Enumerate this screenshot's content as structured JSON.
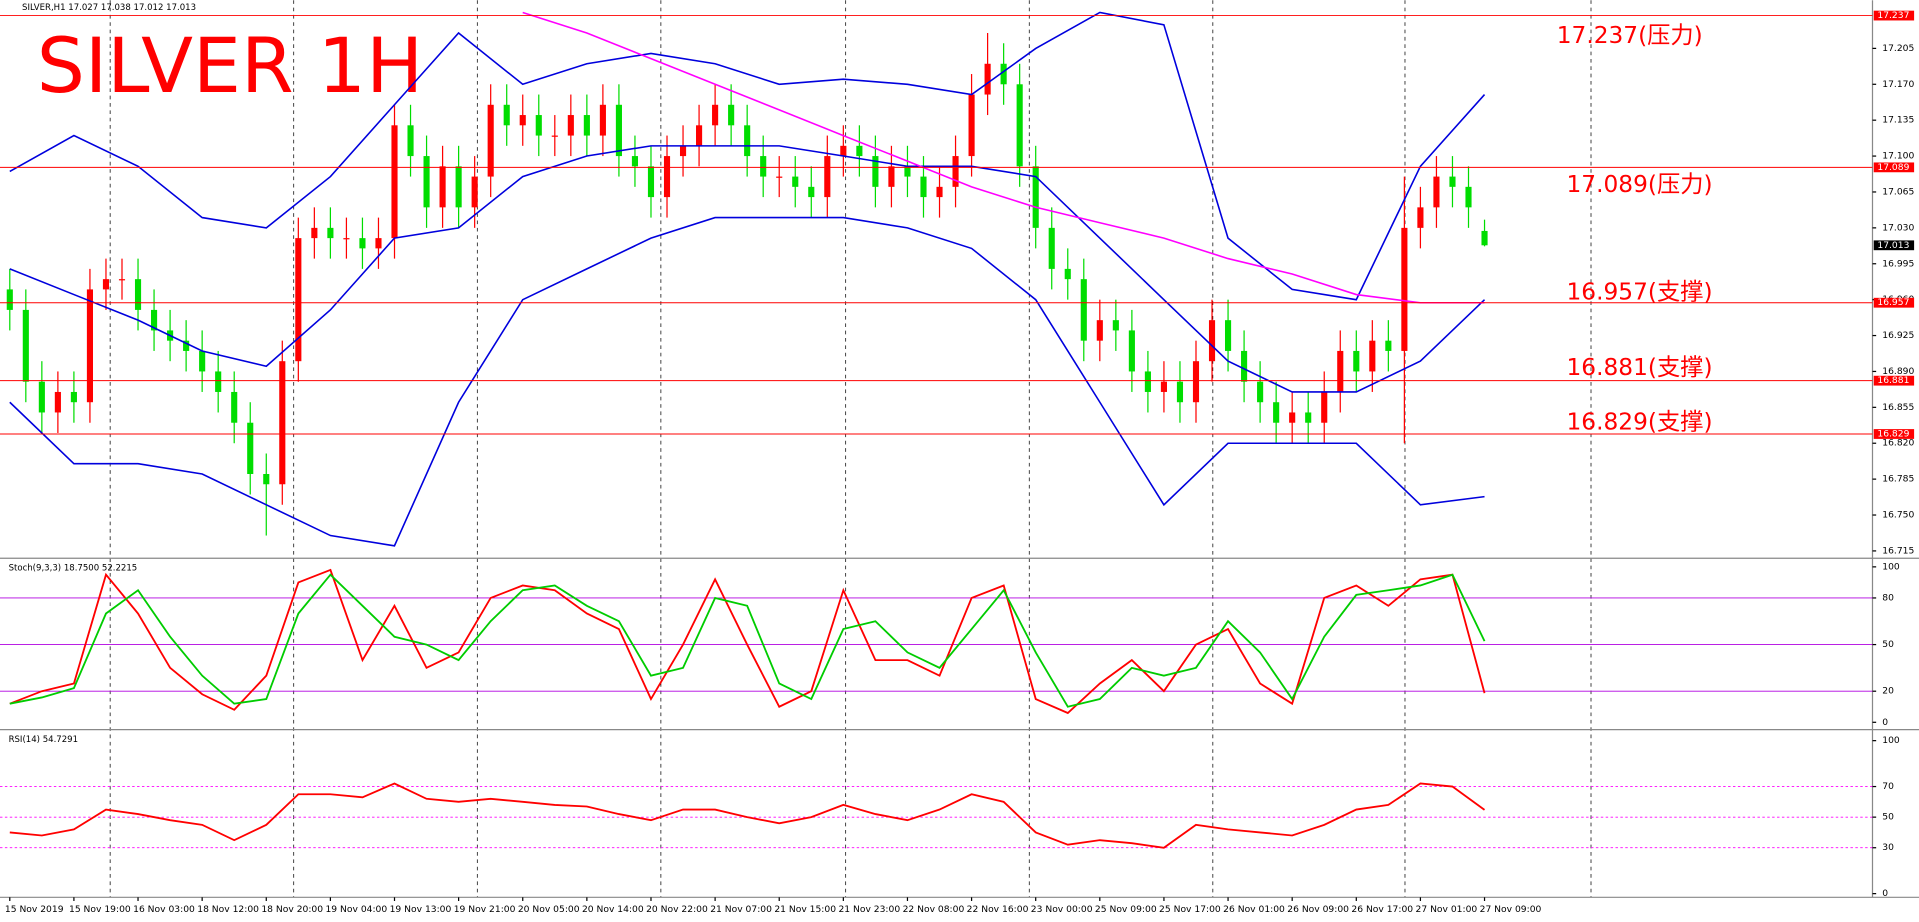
{
  "header": "SILVER,H1  17.027 17.038 17.012 17.013",
  "time_axis": [
    "15 Nov 2019",
    "15 Nov 19:00",
    "16 Nov 03:00",
    "18 Nov 12:00",
    "18 Nov 20:00",
    "19 Nov 04:00",
    "19 Nov 13:00",
    "19 Nov 21:00",
    "20 Nov 05:00",
    "20 Nov 14:00",
    "20 Nov 22:00",
    "21 Nov 07:00",
    "21 Nov 15:00",
    "21 Nov 23:00",
    "22 Nov 08:00",
    "22 Nov 16:00",
    "23 Nov 00:00",
    "25 Nov 09:00",
    "25 Nov 17:00",
    "26 Nov 01:00",
    "26 Nov 09:00",
    "26 Nov 17:00",
    "27 Nov 01:00",
    "27 Nov 09:00"
  ],
  "chart_data": [
    {
      "type": "candlestick",
      "title": "SILVER   1H",
      "open": [
        16.97,
        16.95,
        16.88,
        16.85,
        16.87,
        16.86,
        16.97,
        16.98,
        16.98,
        16.95,
        16.93,
        16.92,
        16.91,
        16.89,
        16.87,
        16.84,
        16.79,
        16.78,
        16.9,
        17.02,
        17.03,
        17.02,
        17.02,
        17.01,
        17.02,
        17.13,
        17.1,
        17.05,
        17.09,
        17.05,
        17.08,
        17.15,
        17.13,
        17.14,
        17.12,
        17.12,
        17.14,
        17.12,
        17.15,
        17.1,
        17.09,
        17.06,
        17.1,
        17.11,
        17.13,
        17.15,
        17.13,
        17.1,
        17.08,
        17.08,
        17.07,
        17.06,
        17.1,
        17.11,
        17.1,
        17.07,
        17.09,
        17.08,
        17.06,
        17.07,
        17.1,
        17.16,
        17.19,
        17.17,
        17.09,
        17.03,
        16.99,
        16.98,
        16.92,
        16.94,
        16.93,
        16.89,
        16.87,
        16.88,
        16.86,
        16.9,
        16.94,
        16.91,
        16.88,
        16.86,
        16.84,
        16.85,
        16.84,
        16.87,
        16.91,
        16.89,
        16.92,
        16.91,
        17.03,
        17.05,
        17.08,
        17.07,
        17.027
      ],
      "high": [
        16.99,
        16.97,
        16.9,
        16.89,
        16.89,
        16.99,
        17.0,
        17.0,
        17.0,
        16.97,
        16.95,
        16.94,
        16.93,
        16.91,
        16.89,
        16.86,
        16.81,
        16.92,
        17.04,
        17.05,
        17.05,
        17.04,
        17.04,
        17.04,
        17.15,
        17.15,
        17.12,
        17.11,
        17.11,
        17.1,
        17.17,
        17.17,
        17.16,
        17.16,
        17.14,
        17.16,
        17.16,
        17.17,
        17.17,
        17.12,
        17.11,
        17.12,
        17.13,
        17.15,
        17.17,
        17.17,
        17.15,
        17.12,
        17.1,
        17.1,
        17.09,
        17.12,
        17.13,
        17.13,
        17.12,
        17.11,
        17.11,
        17.1,
        17.09,
        17.12,
        17.18,
        17.22,
        17.21,
        17.19,
        17.11,
        17.05,
        17.01,
        17.0,
        16.96,
        16.96,
        16.95,
        16.91,
        16.9,
        16.9,
        16.92,
        16.96,
        16.96,
        16.93,
        16.9,
        16.88,
        16.87,
        16.87,
        16.89,
        16.93,
        16.93,
        16.94,
        16.94,
        17.08,
        17.07,
        17.1,
        17.1,
        17.09,
        17.038
      ],
      "low": [
        16.93,
        16.86,
        16.83,
        16.83,
        16.84,
        16.84,
        16.95,
        16.96,
        16.93,
        16.91,
        16.9,
        16.89,
        16.87,
        16.85,
        16.82,
        16.77,
        16.73,
        16.76,
        16.88,
        17.0,
        17.0,
        17.0,
        16.99,
        16.99,
        17.0,
        17.08,
        17.03,
        17.03,
        17.03,
        17.03,
        17.06,
        17.11,
        17.11,
        17.1,
        17.1,
        17.1,
        17.1,
        17.1,
        17.08,
        17.07,
        17.04,
        17.04,
        17.08,
        17.09,
        17.11,
        17.11,
        17.08,
        17.06,
        17.06,
        17.05,
        17.04,
        17.04,
        17.08,
        17.08,
        17.05,
        17.05,
        17.06,
        17.04,
        17.04,
        17.05,
        17.08,
        17.14,
        17.15,
        17.07,
        17.01,
        16.97,
        16.96,
        16.9,
        16.9,
        16.91,
        16.87,
        16.85,
        16.85,
        16.84,
        16.84,
        16.88,
        16.89,
        16.86,
        16.84,
        16.82,
        16.82,
        16.82,
        16.82,
        16.85,
        16.87,
        16.87,
        16.89,
        16.82,
        17.01,
        17.03,
        17.05,
        17.03,
        17.012
      ],
      "close": [
        16.95,
        16.88,
        16.85,
        16.87,
        16.86,
        16.97,
        16.98,
        16.98,
        16.95,
        16.93,
        16.92,
        16.91,
        16.89,
        16.87,
        16.84,
        16.79,
        16.78,
        16.9,
        17.02,
        17.03,
        17.02,
        17.02,
        17.01,
        17.02,
        17.13,
        17.1,
        17.05,
        17.09,
        17.05,
        17.08,
        17.15,
        17.13,
        17.14,
        17.12,
        17.12,
        17.14,
        17.12,
        17.15,
        17.1,
        17.09,
        17.06,
        17.1,
        17.11,
        17.13,
        17.15,
        17.13,
        17.1,
        17.08,
        17.08,
        17.07,
        17.06,
        17.1,
        17.11,
        17.1,
        17.07,
        17.09,
        17.08,
        17.06,
        17.07,
        17.1,
        17.16,
        17.19,
        17.17,
        17.09,
        17.03,
        16.99,
        16.98,
        16.92,
        16.94,
        16.93,
        16.89,
        16.87,
        16.88,
        16.86,
        16.9,
        16.94,
        16.91,
        16.88,
        16.86,
        16.84,
        16.85,
        16.84,
        16.87,
        16.91,
        16.89,
        16.92,
        16.91,
        17.03,
        17.05,
        17.08,
        17.07,
        17.05,
        17.013
      ],
      "up_color": "#ff0000",
      "down_color": "#00dd00",
      "series": [
        {
          "color": "#0000dd",
          "values": [
            17.085,
            17.12,
            17.09,
            17.04,
            17.03,
            17.08,
            17.15,
            17.22,
            17.17,
            17.19,
            17.2,
            17.19,
            17.17,
            17.175,
            17.17,
            17.16,
            17.205,
            17.24,
            17.228,
            17.02,
            16.97,
            16.96,
            17.09,
            17.16
          ]
        },
        {
          "color": "#0000dd",
          "values": [
            16.99,
            16.965,
            16.94,
            16.91,
            16.895,
            16.95,
            17.02,
            17.03,
            17.08,
            17.1,
            17.11,
            17.11,
            17.11,
            17.1,
            17.09,
            17.09,
            17.08,
            17.02,
            16.96,
            16.9,
            16.87,
            16.87,
            16.9,
            16.96
          ]
        },
        {
          "color": "#0000dd",
          "values": [
            16.86,
            16.8,
            16.8,
            16.79,
            16.76,
            16.73,
            16.72,
            16.86,
            16.96,
            16.99,
            17.02,
            17.04,
            17.04,
            17.04,
            17.03,
            17.01,
            16.96,
            16.86,
            16.76,
            16.82,
            16.82,
            16.82,
            16.76,
            16.768
          ]
        },
        {
          "color": "#ff00ff",
          "values": [
            null,
            null,
            null,
            null,
            null,
            null,
            null,
            null,
            17.24,
            17.22,
            17.195,
            17.17,
            17.145,
            17.12,
            17.095,
            17.07,
            17.05,
            17.035,
            17.02,
            17.0,
            16.985,
            16.965,
            16.957,
            16.957
          ]
        }
      ],
      "levels": [
        {
          "value": 17.237,
          "label": "17.237(压力)"
        },
        {
          "value": 17.089,
          "label": "17.089(压力)"
        },
        {
          "value": 16.957,
          "label": "16.957(支撑)"
        },
        {
          "value": 16.881,
          "label": "16.881(支撑)"
        },
        {
          "value": 16.829,
          "label": "16.829(支撑)"
        }
      ],
      "level_color": "#ff0000",
      "last_price": 17.013,
      "ylim": [
        16.709,
        17.246
      ],
      "yticks": [
        16.715,
        {
          "value": 16.75,
          "label": "16.750"
        },
        16.785,
        {
          "value": 16.82,
          "label": "16.820"
        },
        16.855,
        {
          "value": 16.89,
          "label": "16.890"
        },
        16.925,
        {
          "value": 16.96,
          "label": "16.960"
        },
        16.995,
        {
          "value": 17.03,
          "label": "17.030"
        },
        17.065,
        {
          "value": 17.1,
          "label": "17.100"
        },
        17.135,
        {
          "value": 17.17,
          "label": "17.170"
        },
        17.205
      ]
    },
    {
      "type": "line",
      "title": "Stoch(9,3,3) 18.7500 52.2215",
      "series": [
        {
          "color": "#ff0000",
          "values": [
            12,
            20,
            25,
            95,
            70,
            35,
            18,
            8,
            30,
            90,
            98,
            40,
            75,
            35,
            45,
            80,
            88,
            85,
            70,
            60,
            15,
            50,
            92,
            50,
            10,
            20,
            85,
            40,
            40,
            30,
            80,
            88,
            15,
            6,
            25,
            40,
            20,
            50,
            60,
            25,
            12,
            80,
            88,
            75,
            92,
            95,
            18.75
          ]
        },
        {
          "color": "#00cc00",
          "values": [
            12,
            16,
            22,
            70,
            85,
            55,
            30,
            12,
            15,
            70,
            95,
            75,
            55,
            50,
            40,
            65,
            85,
            88,
            75,
            65,
            30,
            35,
            80,
            75,
            25,
            15,
            60,
            65,
            45,
            35,
            60,
            85,
            45,
            10,
            15,
            35,
            30,
            35,
            65,
            45,
            15,
            55,
            82,
            85,
            88,
            95,
            52.2215
          ]
        }
      ],
      "levels": [
        80,
        50,
        20
      ],
      "level_color": "#b000e0",
      "ylim": [
        0,
        100
      ],
      "yticks": [
        0,
        20,
        50,
        80,
        100
      ]
    },
    {
      "type": "line",
      "title": "RSI(14) 54.7291",
      "series": [
        {
          "color": "#ff0000",
          "values": [
            40,
            38,
            42,
            55,
            52,
            48,
            45,
            35,
            45,
            65,
            65,
            63,
            72,
            62,
            60,
            62,
            60,
            58,
            57,
            52,
            48,
            55,
            55,
            50,
            46,
            50,
            58,
            52,
            48,
            55,
            65,
            60,
            40,
            32,
            35,
            33,
            30,
            45,
            42,
            40,
            38,
            45,
            55,
            58,
            72,
            70,
            54.7291
          ]
        }
      ],
      "levels": [
        70,
        50,
        30
      ],
      "level_color": "#ff00ff",
      "ylim": [
        0,
        100
      ],
      "yticks": [
        0,
        30,
        50,
        70,
        100
      ]
    }
  ]
}
